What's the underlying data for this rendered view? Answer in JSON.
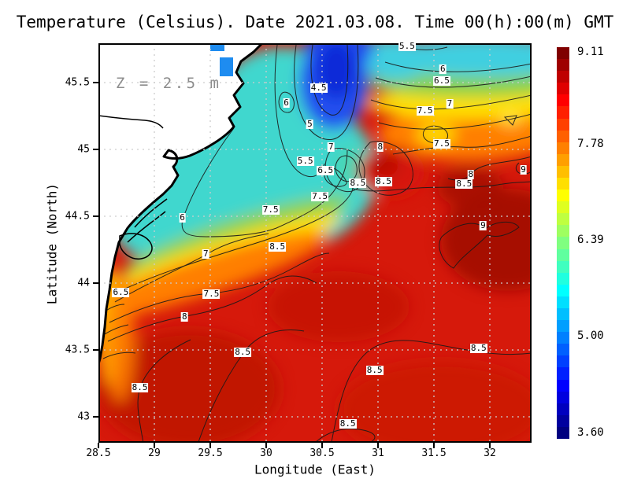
{
  "title": "Temperature (Celsius). Date 2021.03.08. Time 00(h):00(m) GMT",
  "depth_annotation": "Z = 2.5 m",
  "axes": {
    "x_label": "Longitude (East)",
    "y_label": "Latitude (North)",
    "x_tick_labels": [
      "28.5",
      "29",
      "29.5",
      "30",
      "30.5",
      "31",
      "31.5",
      "32"
    ],
    "y_tick_labels": [
      "45.5",
      "45",
      "44.5",
      "44",
      "43.5",
      "43"
    ]
  },
  "colorbar": {
    "colormap": "jet",
    "min": 3.6,
    "max": 9.11,
    "tick_labels": [
      "9.11",
      "7.78",
      "6.39",
      "5.00",
      "3.60"
    ]
  },
  "colors": {
    "land": "#ffffff",
    "coastline": "#000000",
    "sea_base_red": "#d6190b",
    "grid_dash": "#cdcdcd",
    "depth_text": "#8c8c8c",
    "contour_line": "#1a1a1a",
    "estuary_patch": "#1e8cf0"
  },
  "chart_data": {
    "type": "heatmap",
    "variant": "filled contour map of sea surface temperature (jet colormap) with labeled isotherms",
    "title": "Temperature (Celsius). Date 2021.03.08. Time 00(h):00(m) GMT",
    "date": "2021.03.08",
    "time": "00(h):00(m) GMT",
    "depth": "Z = 2.5 m",
    "xlabel": "Longitude (East)",
    "ylabel": "Latitude (North)",
    "x_range": [
      28.5,
      32.37
    ],
    "y_range": [
      42.81,
      45.79
    ],
    "x_ticks": [
      28.5,
      29,
      29.5,
      30,
      30.5,
      31,
      31.5,
      32
    ],
    "y_ticks": [
      43,
      43.5,
      44,
      44.5,
      45,
      45.5
    ],
    "grid": "dashed",
    "legend_position": "right colorbar",
    "temperature_range_c": [
      3.6,
      9.11
    ],
    "colorbar_tick_values": [
      9.11,
      7.78,
      6.39,
      5.0,
      3.6
    ],
    "contour_interval_c": 0.5,
    "contour_levels_c": [
      4.5,
      5,
      5.5,
      6,
      6.5,
      7,
      7.5,
      8,
      8.5,
      9
    ],
    "field_pattern": "cold core (~4-4.5 C, dark blue) in the north-center near 30.5E/45.5N; cyan 5-6 C water over the northwest shelf; warm 8.5-9 C red water over the south and east two thirds of the basin; white land with black coastline on the west",
    "contour_labels": [
      {
        "value": 4.5,
        "lon": 30.47,
        "lat": 45.46
      },
      {
        "value": 5.0,
        "lon": 30.39,
        "lat": 45.19
      },
      {
        "value": 5.5,
        "lon": 31.26,
        "lat": 45.77
      },
      {
        "value": 5.5,
        "lon": 30.35,
        "lat": 44.91
      },
      {
        "value": 6.0,
        "lon": 30.18,
        "lat": 45.35
      },
      {
        "value": 6.0,
        "lon": 31.58,
        "lat": 45.6
      },
      {
        "value": 6.0,
        "lon": 29.25,
        "lat": 44.49
      },
      {
        "value": 6.5,
        "lon": 31.57,
        "lat": 45.51
      },
      {
        "value": 6.5,
        "lon": 30.53,
        "lat": 44.84
      },
      {
        "value": 6.5,
        "lon": 28.7,
        "lat": 43.93
      },
      {
        "value": 7.0,
        "lon": 31.64,
        "lat": 45.34
      },
      {
        "value": 7.0,
        "lon": 30.58,
        "lat": 45.02
      },
      {
        "value": 7.0,
        "lon": 29.46,
        "lat": 44.22
      },
      {
        "value": 7.5,
        "lon": 31.42,
        "lat": 45.29
      },
      {
        "value": 7.5,
        "lon": 31.57,
        "lat": 45.04
      },
      {
        "value": 7.5,
        "lon": 30.48,
        "lat": 44.65
      },
      {
        "value": 7.5,
        "lon": 30.04,
        "lat": 44.55
      },
      {
        "value": 7.5,
        "lon": 29.51,
        "lat": 43.92
      },
      {
        "value": 8.0,
        "lon": 31.02,
        "lat": 45.02
      },
      {
        "value": 8.0,
        "lon": 31.83,
        "lat": 44.81
      },
      {
        "value": 8.0,
        "lon": 29.27,
        "lat": 43.75
      },
      {
        "value": 8.5,
        "lon": 30.82,
        "lat": 44.75
      },
      {
        "value": 8.5,
        "lon": 31.05,
        "lat": 44.76
      },
      {
        "value": 8.5,
        "lon": 31.77,
        "lat": 44.74
      },
      {
        "value": 8.5,
        "lon": 30.1,
        "lat": 44.27
      },
      {
        "value": 8.5,
        "lon": 29.79,
        "lat": 43.48
      },
      {
        "value": 8.5,
        "lon": 28.87,
        "lat": 43.22
      },
      {
        "value": 8.5,
        "lon": 30.97,
        "lat": 43.35
      },
      {
        "value": 8.5,
        "lon": 31.9,
        "lat": 43.51
      },
      {
        "value": 8.5,
        "lon": 30.73,
        "lat": 42.95
      },
      {
        "value": 9.0,
        "lon": 32.3,
        "lat": 44.85
      },
      {
        "value": 9.0,
        "lon": 31.94,
        "lat": 44.43
      }
    ]
  }
}
